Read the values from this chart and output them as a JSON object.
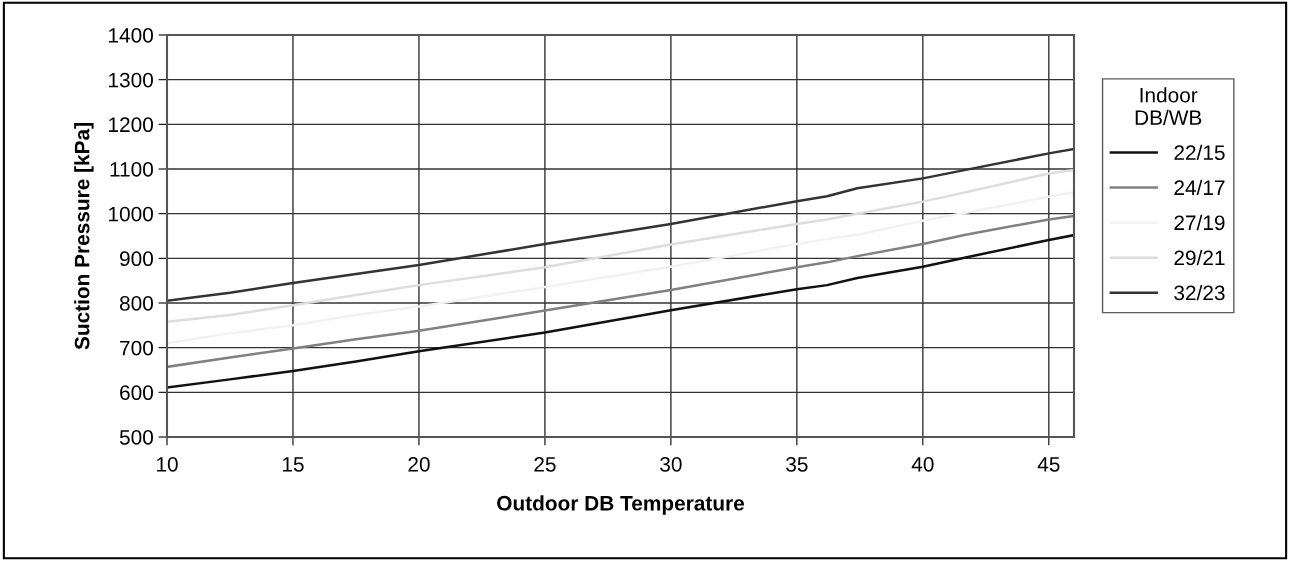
{
  "chart_data": {
    "type": "line",
    "xlabel": "Outdoor DB Temperature",
    "ylabel": "Suction Pressure [kPa]",
    "legend_title": "Indoor\nDB/WB",
    "x": [
      10,
      12.5,
      15,
      17.5,
      20,
      25,
      30,
      35,
      36.2,
      37.4,
      40,
      41.7,
      45,
      46
    ],
    "series": [
      {
        "name": "22/15",
        "color": "#111111",
        "values": [
          611,
          629,
          648,
          669,
          692,
          734,
          784,
          831,
          840,
          856,
          881,
          902,
          941,
          952
        ]
      },
      {
        "name": "24/17",
        "color": "#808080",
        "values": [
          657,
          678,
          698,
          719,
          738,
          783,
          829,
          880,
          891,
          905,
          932,
          953,
          987,
          995
        ]
      },
      {
        "name": "27/19",
        "color": "#f2f2f2",
        "values": [
          710,
          732,
          750,
          773,
          792,
          836,
          881,
          932,
          943,
          953,
          984,
          1002,
          1038,
          1048
        ]
      },
      {
        "name": "29/21",
        "color": "#dddddd",
        "values": [
          758,
          773,
          795,
          818,
          840,
          880,
          931,
          977,
          987,
          1000,
          1027,
          1048,
          1090,
          1098
        ]
      },
      {
        "name": "32/23",
        "color": "#333333",
        "values": [
          805,
          823,
          845,
          865,
          885,
          932,
          977,
          1028,
          1039,
          1057,
          1079,
          1098,
          1135,
          1145
        ]
      }
    ],
    "xlim": [
      10,
      46
    ],
    "xticks": [
      10,
      15,
      20,
      25,
      30,
      35,
      40,
      45
    ],
    "ylim": [
      500,
      1400
    ],
    "yticks": [
      500,
      600,
      700,
      800,
      900,
      1000,
      1100,
      1200,
      1300,
      1400
    ],
    "grid": true,
    "legend": "right",
    "marker": "none",
    "line_style": "solid"
  }
}
